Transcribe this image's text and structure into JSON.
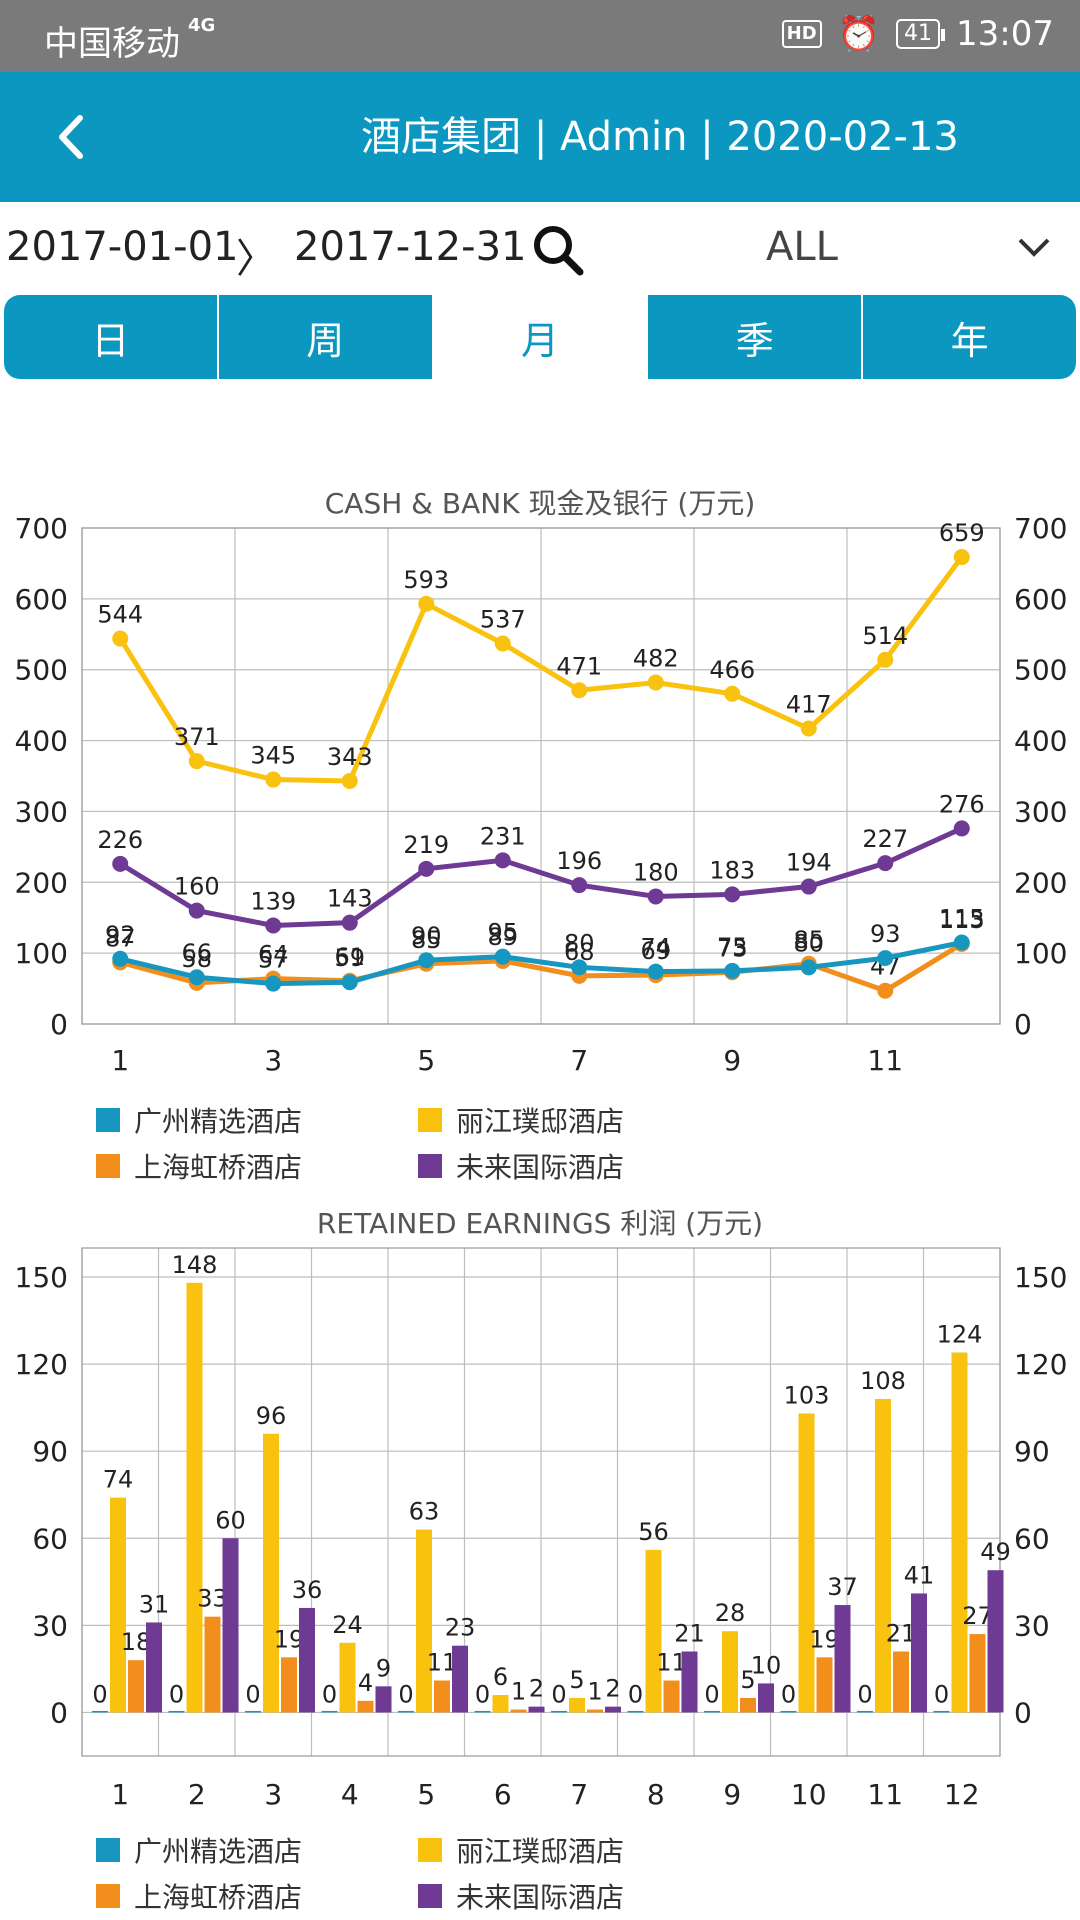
{
  "status_bar": {
    "carrier": "中国移动",
    "network": "4G",
    "hd": "HD",
    "battery": "41",
    "time": "13:07"
  },
  "header": {
    "title": "酒店集团 | Admin | 2020-02-13"
  },
  "filter": {
    "start_date": "2017-01-01",
    "end_date": "2017-12-31",
    "arrow": "〉",
    "selection": "ALL"
  },
  "tabs": [
    {
      "label": "日"
    },
    {
      "label": "周"
    },
    {
      "label": "月",
      "active": true
    },
    {
      "label": "季"
    },
    {
      "label": "年"
    }
  ],
  "colors": {
    "guangzhou": "#1797c0",
    "lijiang": "#f9c20f",
    "shanghai": "#f28e1c",
    "weilai": "#6e3a94",
    "accent": "#0b97bf"
  },
  "chart_data": [
    {
      "type": "line",
      "title": "CASH & BANK 现金及银行 (万元)",
      "x": [
        1,
        2,
        3,
        4,
        5,
        6,
        7,
        8,
        9,
        10,
        11,
        12
      ],
      "xticks": [
        1,
        3,
        5,
        7,
        9,
        11
      ],
      "ylim": [
        0,
        700
      ],
      "yticks": [
        0,
        100,
        200,
        300,
        400,
        500,
        600,
        700
      ],
      "series": [
        {
          "name": "广州精选酒店",
          "color": "#1797c0",
          "values": [
            92,
            66,
            57,
            59,
            90,
            95,
            80,
            74,
            75,
            80,
            93,
            115
          ]
        },
        {
          "name": "丽江璞邸酒店",
          "color": "#f9c20f",
          "values": [
            544,
            371,
            345,
            343,
            593,
            537,
            471,
            482,
            466,
            417,
            514,
            659
          ]
        },
        {
          "name": "上海虹桥酒店",
          "color": "#f28e1c",
          "values": [
            87,
            58,
            64,
            61,
            85,
            89,
            68,
            69,
            73,
            85,
            47,
            113
          ]
        },
        {
          "name": "未来国际酒店",
          "color": "#6e3a94",
          "values": [
            226,
            160,
            139,
            143,
            219,
            231,
            196,
            180,
            183,
            194,
            227,
            276
          ]
        }
      ],
      "legend": [
        "广州精选酒店",
        "丽江璞邸酒店",
        "上海虹桥酒店",
        "未来国际酒店"
      ]
    },
    {
      "type": "bar",
      "title": "RETAINED EARNINGS 利润 (万元)",
      "categories": [
        1,
        2,
        3,
        4,
        5,
        6,
        7,
        8,
        9,
        10,
        11,
        12
      ],
      "ylim": [
        -15,
        160
      ],
      "yticks": [
        0,
        30,
        60,
        90,
        120,
        150
      ],
      "series": [
        {
          "name": "广州精选酒店",
          "color": "#1797c0",
          "values": [
            0,
            0,
            0,
            0,
            0,
            0,
            0,
            0,
            0,
            0,
            0,
            0
          ]
        },
        {
          "name": "丽江璞邸酒店",
          "color": "#f9c20f",
          "values": [
            74,
            148,
            96,
            24,
            63,
            6,
            5,
            56,
            28,
            103,
            108,
            124
          ]
        },
        {
          "name": "上海虹桥酒店",
          "color": "#f28e1c",
          "values": [
            18,
            33,
            19,
            4,
            11,
            1,
            1,
            11,
            5,
            19,
            21,
            27
          ]
        },
        {
          "name": "未来国际酒店",
          "color": "#6e3a94",
          "values": [
            31,
            60,
            36,
            9,
            23,
            2,
            2,
            21,
            10,
            37,
            41,
            49
          ]
        }
      ],
      "legend": [
        "广州精选酒店",
        "丽江璞邸酒店",
        "上海虹桥酒店",
        "未来国际酒店"
      ]
    }
  ]
}
